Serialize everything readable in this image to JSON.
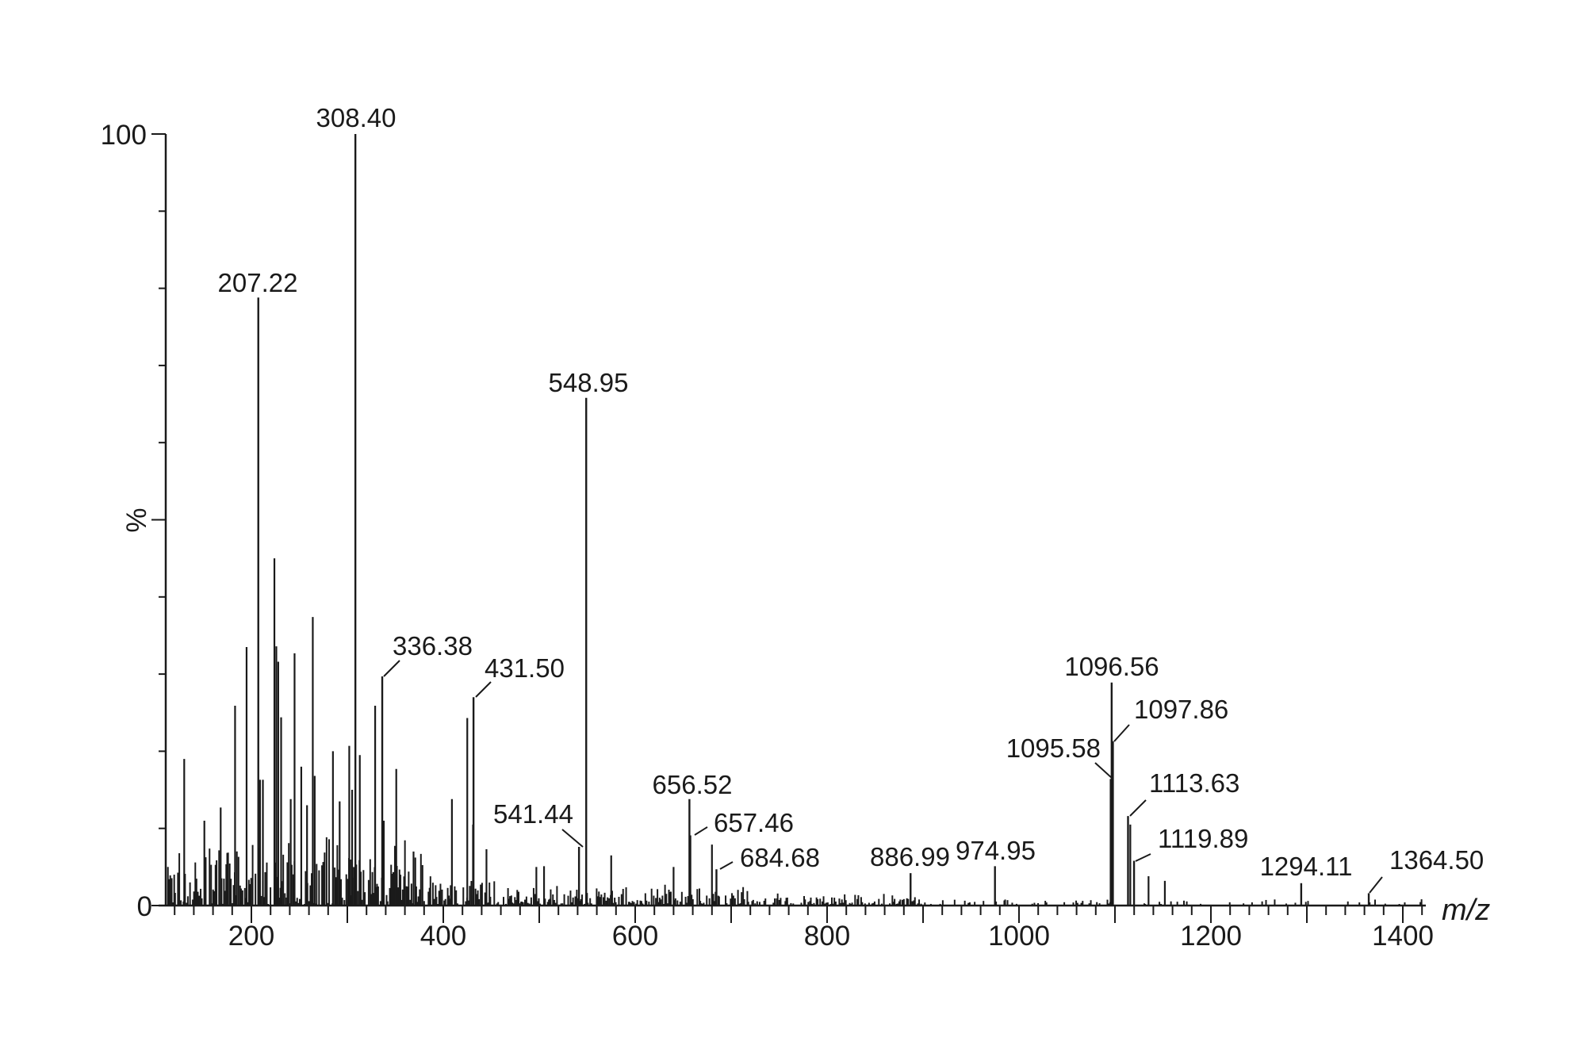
{
  "chart_data": {
    "type": "bar",
    "subtype": "mass-spectrum-stick",
    "title": "",
    "xlabel": "m/z",
    "ylabel": "%",
    "xlim": [
      111,
      1423
    ],
    "ylim": [
      0,
      100
    ],
    "grid": false,
    "legend": null,
    "x_ticks": {
      "labels": [
        "200",
        "400",
        "600",
        "800",
        "1000",
        "1200",
        "1400"
      ],
      "values": [
        200,
        400,
        600,
        800,
        1000,
        1200,
        1400
      ],
      "major_every": 100,
      "minor_every": 20
    },
    "y_ticks": {
      "labels": [
        "0",
        "100"
      ],
      "values": [
        0,
        100
      ],
      "minor_every": 10,
      "mid_label": "%",
      "mid_value": 50
    },
    "labeled_peaks": [
      {
        "mz": 207.22,
        "intensity": 78.8,
        "label": "207.22"
      },
      {
        "mz": 308.4,
        "intensity": 100.0,
        "label": "308.40"
      },
      {
        "mz": 336.38,
        "intensity": 29.7,
        "label": "336.38"
      },
      {
        "mz": 431.5,
        "intensity": 27.0,
        "label": "431.50"
      },
      {
        "mz": 541.44,
        "intensity": 7.6,
        "label": "541.44"
      },
      {
        "mz": 548.95,
        "intensity": 65.8,
        "label": "548.95"
      },
      {
        "mz": 656.52,
        "intensity": 13.8,
        "label": "656.52"
      },
      {
        "mz": 657.46,
        "intensity": 9.1,
        "label": "657.46"
      },
      {
        "mz": 684.68,
        "intensity": 4.7,
        "label": "684.68"
      },
      {
        "mz": 886.99,
        "intensity": 4.2,
        "label": "886.99"
      },
      {
        "mz": 974.95,
        "intensity": 5.1,
        "label": "974.95"
      },
      {
        "mz": 1095.58,
        "intensity": 16.4,
        "label": "1095.58"
      },
      {
        "mz": 1096.56,
        "intensity": 28.9,
        "label": "1096.56"
      },
      {
        "mz": 1097.86,
        "intensity": 21.3,
        "label": "1097.86"
      },
      {
        "mz": 1113.63,
        "intensity": 11.6,
        "label": "1113.63"
      },
      {
        "mz": 1119.89,
        "intensity": 5.8,
        "label": "1119.89"
      },
      {
        "mz": 1294.11,
        "intensity": 2.9,
        "label": "1294.11"
      },
      {
        "mz": 1364.5,
        "intensity": 1.6,
        "label": "1364.50"
      }
    ],
    "unlabeled_major_peaks": [
      {
        "mz": 130,
        "intensity": 19.0
      },
      {
        "mz": 151,
        "intensity": 11.0
      },
      {
        "mz": 168,
        "intensity": 12.7
      },
      {
        "mz": 183,
        "intensity": 25.9
      },
      {
        "mz": 195,
        "intensity": 33.5
      },
      {
        "mz": 209,
        "intensity": 16.3
      },
      {
        "mz": 212,
        "intensity": 16.3
      },
      {
        "mz": 224,
        "intensity": 45.0
      },
      {
        "mz": 226,
        "intensity": 33.6
      },
      {
        "mz": 228,
        "intensity": 31.6
      },
      {
        "mz": 231,
        "intensity": 24.4
      },
      {
        "mz": 241,
        "intensity": 13.8
      },
      {
        "mz": 245,
        "intensity": 32.7
      },
      {
        "mz": 252,
        "intensity": 18.0
      },
      {
        "mz": 258,
        "intensity": 13.0
      },
      {
        "mz": 264,
        "intensity": 37.4
      },
      {
        "mz": 266,
        "intensity": 16.8
      },
      {
        "mz": 285,
        "intensity": 20.0
      },
      {
        "mz": 292,
        "intensity": 13.5
      },
      {
        "mz": 302,
        "intensity": 20.7
      },
      {
        "mz": 305,
        "intensity": 15.0
      },
      {
        "mz": 313,
        "intensity": 19.5
      },
      {
        "mz": 329,
        "intensity": 25.9
      },
      {
        "mz": 338,
        "intensity": 11.0
      },
      {
        "mz": 351,
        "intensity": 17.7
      },
      {
        "mz": 369,
        "intensity": 7.0
      },
      {
        "mz": 409,
        "intensity": 13.8
      },
      {
        "mz": 425,
        "intensity": 24.3
      },
      {
        "mz": 431,
        "intensity": 10.5
      },
      {
        "mz": 445,
        "intensity": 7.3
      },
      {
        "mz": 497,
        "intensity": 5.0
      },
      {
        "mz": 505,
        "intensity": 5.1
      },
      {
        "mz": 575,
        "intensity": 6.5
      },
      {
        "mz": 640,
        "intensity": 5.0
      },
      {
        "mz": 680,
        "intensity": 7.9
      },
      {
        "mz": 1116,
        "intensity": 10.5
      },
      {
        "mz": 1135,
        "intensity": 3.8
      },
      {
        "mz": 1152,
        "intensity": 3.2
      }
    ],
    "annotations": [
      "Labels sit above peak tops; several use short diagonal leader lines (336.38, 431.50, 541.44, 657.46, 684.68, 1095.58, 1097.86, 1113.63, 1119.89, 1364.50)"
    ]
  },
  "labels": {
    "y_axis_title": "%",
    "x_axis_title": "m/z",
    "y_tick_top": "100",
    "y_tick_bottom": "0"
  },
  "colors": {
    "ink": "#1a1a1a",
    "background": "#ffffff"
  }
}
